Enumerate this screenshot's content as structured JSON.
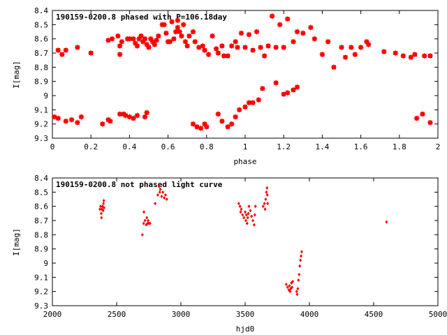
{
  "chart_data": [
    {
      "type": "scatter",
      "title": "190159-0200.8 phased with P=106.18day",
      "xlabel": "phase",
      "ylabel": "I[mag]",
      "xlim": [
        0,
        2
      ],
      "ylim": [
        8.4,
        9.3
      ],
      "y_inverted": true,
      "xticks": [
        "0",
        "0.2",
        "0.4",
        "0.6",
        "0.8",
        "1",
        "1.2",
        "1.4",
        "1.6",
        "1.8",
        "2"
      ],
      "yticks": [
        "8.4",
        "8.5",
        "8.6",
        "8.7",
        "8.8",
        "8.9",
        "9",
        "9.1",
        "9.2",
        "9.3"
      ],
      "marker": "cross-square",
      "color": "#ff0000",
      "series": [
        {
          "points": [
            [
              0.01,
              9.15
            ],
            [
              0.03,
              9.16
            ],
            [
              0.07,
              9.18
            ],
            [
              0.1,
              9.17
            ],
            [
              0.13,
              9.19
            ],
            [
              0.15,
              9.15
            ],
            [
              0.26,
              9.2
            ],
            [
              0.29,
              9.17
            ],
            [
              0.3,
              9.18
            ],
            [
              0.35,
              9.13
            ],
            [
              0.37,
              9.13
            ],
            [
              0.38,
              9.14
            ],
            [
              0.4,
              9.15
            ],
            [
              0.42,
              9.16
            ],
            [
              0.44,
              9.14
            ],
            [
              0.48,
              9.15
            ],
            [
              0.49,
              9.12
            ],
            [
              0.73,
              9.2
            ],
            [
              0.75,
              9.22
            ],
            [
              0.77,
              9.23
            ],
            [
              0.79,
              9.2
            ],
            [
              0.8,
              9.22
            ],
            [
              0.86,
              9.13
            ],
            [
              0.88,
              9.18
            ],
            [
              0.91,
              9.22
            ],
            [
              0.93,
              9.2
            ],
            [
              0.95,
              9.15
            ],
            [
              0.97,
              9.1
            ],
            [
              1.0,
              9.08
            ],
            [
              1.02,
              9.05
            ],
            [
              1.04,
              9.05
            ],
            [
              1.07,
              9.03
            ],
            [
              1.09,
              8.95
            ],
            [
              1.16,
              8.91
            ],
            [
              1.2,
              8.99
            ],
            [
              1.22,
              8.98
            ],
            [
              1.25,
              8.96
            ],
            [
              1.27,
              8.94
            ],
            [
              1.89,
              9.16
            ],
            [
              1.92,
              9.13
            ],
            [
              1.96,
              9.19
            ],
            [
              0.03,
              8.68
            ],
            [
              0.05,
              8.71
            ],
            [
              0.07,
              8.68
            ],
            [
              0.13,
              8.66
            ],
            [
              0.2,
              8.7
            ],
            [
              0.29,
              8.61
            ],
            [
              0.31,
              8.6
            ],
            [
              0.34,
              8.58
            ],
            [
              0.35,
              8.65
            ],
            [
              0.35,
              8.71
            ],
            [
              0.36,
              8.62
            ],
            [
              0.39,
              8.6
            ],
            [
              0.4,
              8.6
            ],
            [
              0.42,
              8.6
            ],
            [
              0.43,
              8.63
            ],
            [
              0.44,
              8.65
            ],
            [
              0.45,
              8.6
            ],
            [
              0.46,
              8.58
            ],
            [
              0.47,
              8.62
            ],
            [
              0.48,
              8.6
            ],
            [
              0.49,
              8.64
            ],
            [
              0.5,
              8.66
            ],
            [
              0.51,
              8.6
            ],
            [
              0.52,
              8.62
            ],
            [
              0.53,
              8.64
            ],
            [
              0.54,
              8.61
            ],
            [
              0.55,
              8.58
            ],
            [
              0.57,
              8.5
            ],
            [
              0.58,
              8.5
            ],
            [
              0.59,
              8.56
            ],
            [
              0.6,
              8.62
            ],
            [
              0.61,
              8.62
            ],
            [
              0.62,
              8.48
            ],
            [
              0.63,
              8.6
            ],
            [
              0.64,
              8.55
            ],
            [
              0.65,
              8.52
            ],
            [
              0.65,
              8.47
            ],
            [
              0.66,
              8.55
            ],
            [
              0.67,
              8.58
            ],
            [
              0.68,
              8.5
            ],
            [
              0.69,
              8.62
            ],
            [
              0.7,
              8.65
            ],
            [
              0.71,
              8.58
            ],
            [
              0.73,
              8.55
            ],
            [
              0.74,
              8.62
            ],
            [
              0.76,
              8.66
            ],
            [
              0.78,
              8.65
            ],
            [
              0.79,
              8.68
            ],
            [
              0.81,
              8.71
            ],
            [
              0.83,
              8.58
            ],
            [
              0.85,
              8.67
            ],
            [
              0.86,
              8.7
            ],
            [
              0.88,
              8.65
            ],
            [
              0.89,
              8.72
            ],
            [
              0.91,
              8.72
            ],
            [
              0.93,
              8.65
            ],
            [
              0.95,
              8.62
            ],
            [
              0.96,
              8.66
            ],
            [
              0.98,
              8.56
            ],
            [
              1.0,
              8.66
            ],
            [
              1.02,
              8.57
            ],
            [
              1.04,
              8.68
            ],
            [
              1.06,
              8.55
            ],
            [
              1.08,
              8.66
            ],
            [
              1.1,
              8.72
            ],
            [
              1.12,
              8.65
            ],
            [
              1.14,
              8.44
            ],
            [
              1.16,
              8.66
            ],
            [
              1.18,
              8.5
            ],
            [
              1.2,
              8.66
            ],
            [
              1.22,
              8.46
            ],
            [
              1.25,
              8.62
            ],
            [
              1.27,
              8.55
            ],
            [
              1.3,
              8.56
            ],
            [
              1.34,
              8.52
            ],
            [
              1.36,
              8.6
            ],
            [
              1.4,
              8.71
            ],
            [
              1.43,
              8.62
            ],
            [
              1.46,
              8.8
            ],
            [
              1.5,
              8.66
            ],
            [
              1.52,
              8.73
            ],
            [
              1.55,
              8.66
            ],
            [
              1.57,
              8.71
            ],
            [
              1.6,
              8.66
            ],
            [
              1.63,
              8.62
            ],
            [
              1.64,
              8.64
            ],
            [
              1.72,
              8.69
            ],
            [
              1.78,
              8.7
            ],
            [
              1.82,
              8.72
            ],
            [
              1.86,
              8.73
            ],
            [
              1.88,
              8.71
            ],
            [
              1.93,
              8.72
            ],
            [
              1.96,
              8.72
            ]
          ]
        }
      ]
    },
    {
      "type": "scatter",
      "title": "190159-0200.8 not phased light curve",
      "xlabel": "hjd0",
      "ylabel": "I[mag]",
      "xlim": [
        2000,
        5000
      ],
      "ylim": [
        8.4,
        9.3
      ],
      "y_inverted": true,
      "xticks": [
        "2000",
        "2500",
        "3000",
        "3500",
        "4000",
        "4500",
        "5000"
      ],
      "yticks": [
        "8.4",
        "8.5",
        "8.6",
        "8.7",
        "8.8",
        "8.9",
        "9",
        "9.1",
        "9.2",
        "9.3"
      ],
      "marker": "small-dot",
      "color": "#ff0000",
      "series": [
        {
          "points": [
            [
              2370,
              8.62
            ],
            [
              2375,
              8.6
            ],
            [
              2380,
              8.65
            ],
            [
              2382,
              8.68
            ],
            [
              2385,
              8.62
            ],
            [
              2390,
              8.6
            ],
            [
              2395,
              8.63
            ],
            [
              2398,
              8.58
            ],
            [
              2400,
              8.56
            ],
            [
              2402,
              8.61
            ],
            [
              2700,
              8.8
            ],
            [
              2710,
              8.72
            ],
            [
              2712,
              8.64
            ],
            [
              2720,
              8.7
            ],
            [
              2730,
              8.73
            ],
            [
              2735,
              8.68
            ],
            [
              2740,
              8.72
            ],
            [
              2745,
              8.7
            ],
            [
              2750,
              8.72
            ],
            [
              2760,
              8.72
            ],
            [
              2800,
              8.58
            ],
            [
              2820,
              8.52
            ],
            [
              2830,
              8.46
            ],
            [
              2835,
              8.5
            ],
            [
              2840,
              8.48
            ],
            [
              2850,
              8.53
            ],
            [
              2860,
              8.5
            ],
            [
              2870,
              8.54
            ],
            [
              2880,
              8.52
            ],
            [
              2890,
              8.55
            ],
            [
              3450,
              8.58
            ],
            [
              3460,
              8.6
            ],
            [
              3465,
              8.64
            ],
            [
              3470,
              8.62
            ],
            [
              3480,
              8.66
            ],
            [
              3490,
              8.68
            ],
            [
              3500,
              8.64
            ],
            [
              3505,
              8.7
            ],
            [
              3510,
              8.66
            ],
            [
              3515,
              8.72
            ],
            [
              3520,
              8.68
            ],
            [
              3525,
              8.65
            ],
            [
              3530,
              8.6
            ],
            [
              3540,
              8.63
            ],
            [
              3550,
              8.67
            ],
            [
              3560,
              8.7
            ],
            [
              3570,
              8.73
            ],
            [
              3575,
              8.66
            ],
            [
              3580,
              8.6
            ],
            [
              3640,
              8.6
            ],
            [
              3650,
              8.58
            ],
            [
              3655,
              8.62
            ],
            [
              3660,
              8.55
            ],
            [
              3665,
              8.5
            ],
            [
              3670,
              8.47
            ],
            [
              3672,
              8.52
            ],
            [
              3675,
              8.58
            ],
            [
              3820,
              9.15
            ],
            [
              3830,
              9.17
            ],
            [
              3840,
              9.19
            ],
            [
              3845,
              9.16
            ],
            [
              3850,
              9.2
            ],
            [
              3855,
              9.18
            ],
            [
              3860,
              9.14
            ],
            [
              3865,
              9.17
            ],
            [
              3870,
              9.13
            ],
            [
              3900,
              9.2
            ],
            [
              3905,
              9.22
            ],
            [
              3910,
              9.18
            ],
            [
              3915,
              9.12
            ],
            [
              3920,
              9.08
            ],
            [
              3925,
              9.02
            ],
            [
              3930,
              8.98
            ],
            [
              3935,
              8.95
            ],
            [
              3940,
              8.92
            ],
            [
              4600,
              8.71
            ]
          ]
        }
      ]
    }
  ]
}
